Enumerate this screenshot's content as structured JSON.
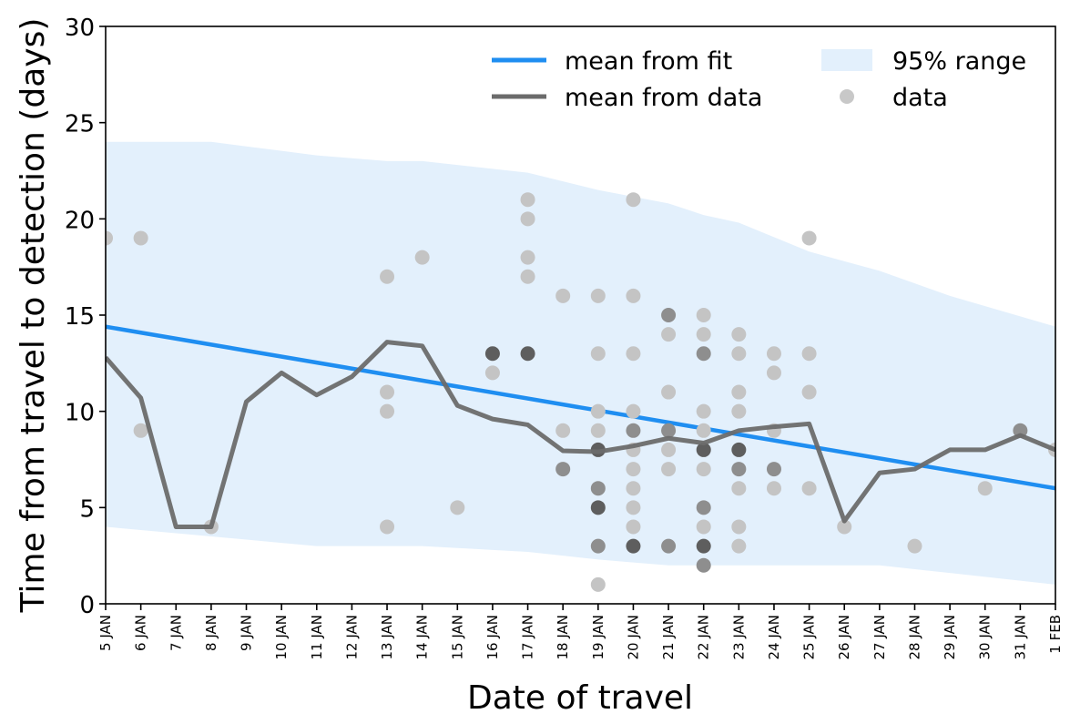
{
  "chart_data": {
    "type": "line",
    "xlabel": "Date of travel",
    "ylabel": "Time from travel to detection (days)",
    "ylim": [
      0,
      30
    ],
    "yticks": [
      0,
      5,
      10,
      15,
      20,
      25,
      30
    ],
    "x_categories": [
      "5 JAN",
      "6 JAN",
      "7 JAN",
      "8 JAN",
      "9 JAN",
      "10 JAN",
      "11 JAN",
      "12 JAN",
      "13 JAN",
      "14 JAN",
      "15 JAN",
      "16 JAN",
      "17 JAN",
      "18 JAN",
      "19 JAN",
      "20 JAN",
      "21 JAN",
      "22 JAN",
      "23 JAN",
      "24 JAN",
      "25 JAN",
      "26 JAN",
      "27 JAN",
      "28 JAN",
      "29 JAN",
      "30 JAN",
      "31 JAN",
      "1 FEB"
    ],
    "grid": false,
    "legend": {
      "placement": "top-right",
      "entries": [
        {
          "label": "mean from fit",
          "kind": "line",
          "color": "#1f8ef1"
        },
        {
          "label": "mean from data",
          "kind": "line",
          "color": "#6b6b6b"
        },
        {
          "label": "95% range",
          "kind": "band",
          "color": "#e3f0fc"
        },
        {
          "label": "data",
          "kind": "dot",
          "color": "#c8c8c8"
        }
      ]
    },
    "series": [
      {
        "name": "mean from fit",
        "color": "#1f8ef1",
        "x": [
          "5 JAN",
          "1 FEB"
        ],
        "y": [
          14.4,
          6.0
        ]
      },
      {
        "name": "mean from data",
        "color": "#6b6b6b",
        "x": [
          "5 JAN",
          "6 JAN",
          "7 JAN",
          "8 JAN",
          "9 JAN",
          "10 JAN",
          "11 JAN",
          "12 JAN",
          "13 JAN",
          "14 JAN",
          "15 JAN",
          "16 JAN",
          "17 JAN",
          "18 JAN",
          "19 JAN",
          "20 JAN",
          "21 JAN",
          "22 JAN",
          "23 JAN",
          "24 JAN",
          "25 JAN",
          "26 JAN",
          "27 JAN",
          "28 JAN",
          "29 JAN",
          "30 JAN",
          "31 JAN",
          "1 FEB"
        ],
        "y": [
          12.8,
          10.7,
          4.0,
          4.0,
          10.5,
          12.0,
          10.85,
          11.8,
          13.6,
          13.4,
          10.3,
          9.6,
          9.3,
          7.95,
          7.9,
          8.2,
          8.6,
          8.35,
          9.0,
          9.2,
          9.35,
          4.3,
          6.8,
          7.0,
          8.0,
          8.0,
          8.75,
          8.0
        ]
      }
    ],
    "band_95": {
      "name": "95% range",
      "color": "#e3f0fc",
      "x": [
        "5 JAN",
        "8 JAN",
        "11 JAN",
        "13 JAN",
        "14 JAN",
        "17 JAN",
        "19 JAN",
        "21 JAN",
        "22 JAN",
        "23 JAN",
        "25 JAN",
        "27 JAN",
        "29 JAN",
        "1 FEB"
      ],
      "upper": [
        24.0,
        24.0,
        23.3,
        23.0,
        23.0,
        22.4,
        21.5,
        20.8,
        20.2,
        19.8,
        18.3,
        17.3,
        16.0,
        14.4
      ],
      "lower": [
        4.0,
        3.5,
        3.0,
        3.0,
        3.0,
        2.7,
        2.3,
        2.0,
        2.0,
        2.0,
        2.0,
        2.0,
        1.6,
        1.0
      ]
    },
    "scatter_points": [
      [
        "5 JAN",
        19,
        1
      ],
      [
        "6 JAN",
        19,
        1
      ],
      [
        "6 JAN",
        9,
        1
      ],
      [
        "8 JAN",
        4,
        1
      ],
      [
        "13 JAN",
        17,
        1
      ],
      [
        "13 JAN",
        11,
        1
      ],
      [
        "13 JAN",
        10,
        1
      ],
      [
        "13 JAN",
        4,
        1
      ],
      [
        "14 JAN",
        18,
        1
      ],
      [
        "15 JAN",
        5,
        1
      ],
      [
        "16 JAN",
        13,
        3
      ],
      [
        "16 JAN",
        12,
        1
      ],
      [
        "17 JAN",
        21,
        1
      ],
      [
        "17 JAN",
        20,
        1
      ],
      [
        "17 JAN",
        18,
        1
      ],
      [
        "17 JAN",
        17,
        1
      ],
      [
        "17 JAN",
        13,
        3
      ],
      [
        "18 JAN",
        16,
        1
      ],
      [
        "18 JAN",
        9,
        1
      ],
      [
        "18 JAN",
        7,
        2
      ],
      [
        "19 JAN",
        16,
        1
      ],
      [
        "19 JAN",
        13,
        1
      ],
      [
        "19 JAN",
        10,
        1
      ],
      [
        "19 JAN",
        9,
        1
      ],
      [
        "19 JAN",
        8,
        3
      ],
      [
        "19 JAN",
        6,
        2
      ],
      [
        "19 JAN",
        5,
        3
      ],
      [
        "19 JAN",
        3,
        2
      ],
      [
        "19 JAN",
        1,
        1
      ],
      [
        "20 JAN",
        21,
        1
      ],
      [
        "20 JAN",
        16,
        1
      ],
      [
        "20 JAN",
        13,
        1
      ],
      [
        "20 JAN",
        10,
        1
      ],
      [
        "20 JAN",
        9,
        2
      ],
      [
        "20 JAN",
        8,
        1
      ],
      [
        "20 JAN",
        7,
        1
      ],
      [
        "20 JAN",
        6,
        1
      ],
      [
        "20 JAN",
        5,
        1
      ],
      [
        "20 JAN",
        4,
        1
      ],
      [
        "20 JAN",
        3,
        3
      ],
      [
        "21 JAN",
        15,
        2
      ],
      [
        "21 JAN",
        14,
        1
      ],
      [
        "21 JAN",
        11,
        1
      ],
      [
        "21 JAN",
        9,
        2
      ],
      [
        "21 JAN",
        8,
        1
      ],
      [
        "21 JAN",
        7,
        1
      ],
      [
        "21 JAN",
        3,
        2
      ],
      [
        "22 JAN",
        15,
        1
      ],
      [
        "22 JAN",
        14,
        1
      ],
      [
        "22 JAN",
        13,
        2
      ],
      [
        "22 JAN",
        10,
        1
      ],
      [
        "22 JAN",
        9,
        1
      ],
      [
        "22 JAN",
        8,
        3
      ],
      [
        "22 JAN",
        7,
        1
      ],
      [
        "22 JAN",
        5,
        2
      ],
      [
        "22 JAN",
        4,
        1
      ],
      [
        "22 JAN",
        3,
        3
      ],
      [
        "22 JAN",
        2,
        2
      ],
      [
        "23 JAN",
        14,
        1
      ],
      [
        "23 JAN",
        13,
        1
      ],
      [
        "23 JAN",
        11,
        1
      ],
      [
        "23 JAN",
        10,
        1
      ],
      [
        "23 JAN",
        8,
        3
      ],
      [
        "23 JAN",
        7,
        2
      ],
      [
        "23 JAN",
        6,
        1
      ],
      [
        "23 JAN",
        4,
        1
      ],
      [
        "23 JAN",
        3,
        1
      ],
      [
        "24 JAN",
        13,
        1
      ],
      [
        "24 JAN",
        12,
        1
      ],
      [
        "24 JAN",
        9,
        1
      ],
      [
        "24 JAN",
        7,
        2
      ],
      [
        "24 JAN",
        6,
        1
      ],
      [
        "25 JAN",
        19,
        1
      ],
      [
        "25 JAN",
        13,
        1
      ],
      [
        "25 JAN",
        11,
        1
      ],
      [
        "25 JAN",
        6,
        1
      ],
      [
        "26 JAN",
        4,
        1
      ],
      [
        "28 JAN",
        3,
        1
      ],
      [
        "30 JAN",
        6,
        1
      ],
      [
        "31 JAN",
        9,
        2
      ],
      [
        "1 FEB",
        8,
        1
      ]
    ]
  }
}
